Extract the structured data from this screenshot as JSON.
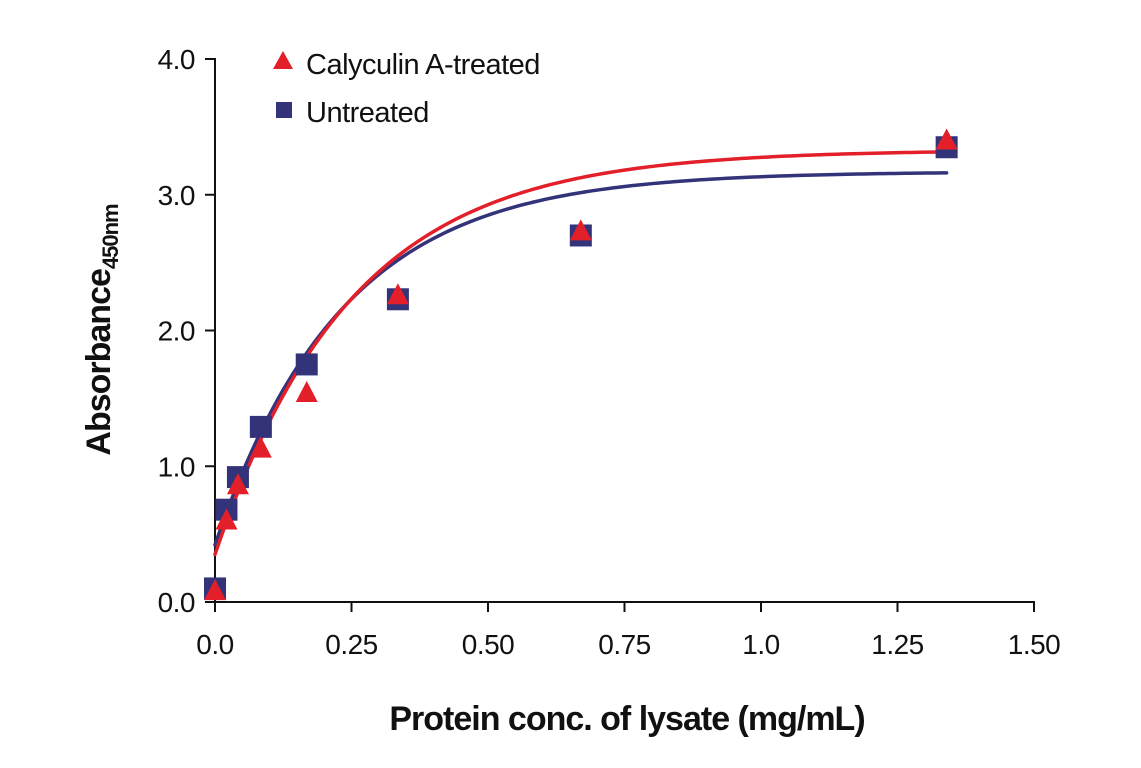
{
  "chart_data": {
    "type": "scatter",
    "xlabel": "Protein conc. of lysate (mg/mL)",
    "ylabel_main": "Absorbance",
    "ylabel_sub": "450nm",
    "xlim": [
      0,
      1.5
    ],
    "ylim": [
      0,
      4.0
    ],
    "x_ticks": [
      0,
      0.25,
      0.5,
      0.75,
      1.0,
      1.25,
      1.5
    ],
    "x_tick_labels": [
      "0.0",
      "0.25",
      "0.50",
      "0.75",
      "1.0",
      "1.25",
      "1.50"
    ],
    "y_ticks": [
      0,
      1,
      2,
      3,
      4
    ],
    "y_tick_labels": [
      "0.0",
      "1.0",
      "2.0",
      "3.0",
      "4.0"
    ],
    "grid": false,
    "legend_position": "top-left",
    "series": [
      {
        "name": "Calyculin A-treated",
        "marker": "triangle",
        "color": "#e3202a",
        "x": [
          0,
          0.021,
          0.042,
          0.084,
          0.168,
          0.335,
          0.67,
          1.34
        ],
        "y": [
          0.08,
          0.6,
          0.86,
          1.13,
          1.54,
          2.26,
          2.73,
          3.4
        ],
        "fit": {
          "ymin": 0.35,
          "ymax": 3.33,
          "k": 4.0
        }
      },
      {
        "name": "Untreated",
        "marker": "square",
        "color": "#33337a",
        "x": [
          0,
          0.021,
          0.042,
          0.084,
          0.168,
          0.335,
          0.67,
          1.34
        ],
        "y": [
          0.1,
          0.68,
          0.92,
          1.29,
          1.75,
          2.23,
          2.7,
          3.35
        ],
        "fit": {
          "ymin": 0.42,
          "ymax": 3.17,
          "k": 4.3
        }
      }
    ]
  }
}
